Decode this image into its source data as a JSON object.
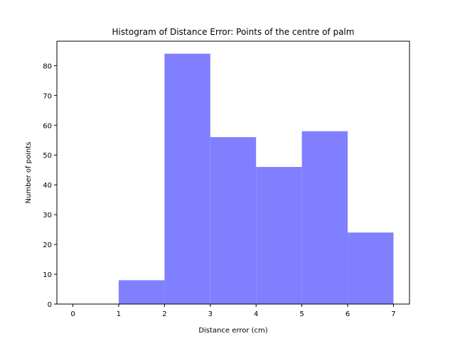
{
  "chart_data": {
    "type": "bar",
    "title": "Histogram of Distance Error: Points of the centre of palm",
    "xlabel": "Distance error (cm)",
    "ylabel": "Number of points",
    "bin_edges": [
      0,
      1,
      2,
      3,
      4,
      5,
      6,
      7
    ],
    "values": [
      0,
      8,
      84,
      56,
      46,
      58,
      24
    ],
    "xlim": [
      -0.35,
      7.35
    ],
    "ylim": [
      0,
      88.2
    ],
    "xticks": [
      0,
      1,
      2,
      3,
      4,
      5,
      6,
      7
    ],
    "yticks": [
      0,
      10,
      20,
      30,
      40,
      50,
      60,
      70,
      80
    ],
    "bar_color": "#8080ff",
    "grid": false,
    "legend": "none"
  }
}
